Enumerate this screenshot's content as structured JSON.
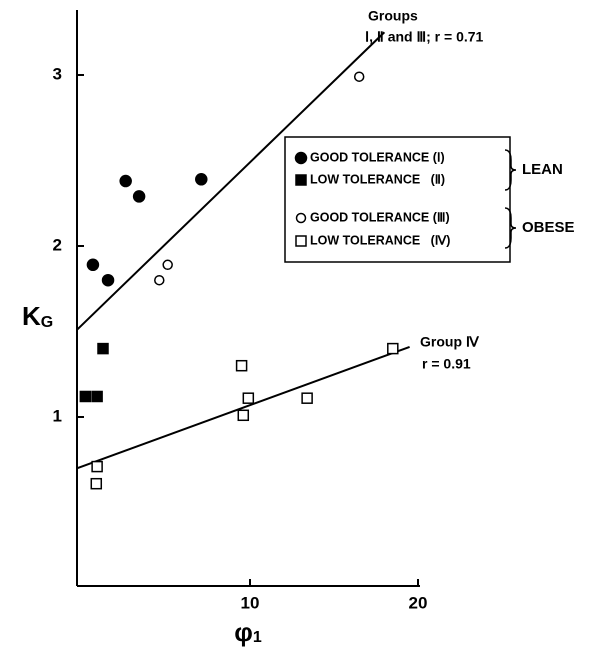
{
  "chart_data": {
    "type": "scatter",
    "xlabel": {
      "text": "φ",
      "sub": "1"
    },
    "ylabel": {
      "text": "K",
      "sub": "G"
    },
    "xlim": [
      0,
      20
    ],
    "ylim": [
      0,
      3.4
    ],
    "xticks": [
      10,
      20
    ],
    "yticks": [
      1,
      2,
      3
    ],
    "series": [
      {
        "name": "GOOD TOLERANCE (Ⅰ)",
        "marker": "circle",
        "filled": true,
        "color": "#000000",
        "x": [
          0.65,
          1.55,
          2.6,
          3.4,
          7.1
        ],
        "values": [
          1.89,
          1.8,
          2.38,
          2.29,
          2.39
        ]
      },
      {
        "name": "LOW TOLERANCE   (Ⅱ)",
        "marker": "square",
        "filled": true,
        "color": "#000000",
        "x": [
          0.2,
          0.9,
          1.25
        ],
        "values": [
          1.12,
          1.12,
          1.4
        ]
      },
      {
        "name": "GOOD TOLERANCE (Ⅲ)",
        "marker": "circle",
        "filled": false,
        "color": "#000000",
        "x": [
          4.6,
          5.1,
          16.5
        ],
        "values": [
          1.8,
          1.89,
          2.99
        ]
      },
      {
        "name": "LOW TOLERANCE   (Ⅳ)",
        "marker": "square",
        "filled": false,
        "color": "#000000",
        "x": [
          0.9,
          0.85,
          9.5,
          9.9,
          9.6,
          13.4,
          18.5
        ],
        "values": [
          0.71,
          0.61,
          1.3,
          1.11,
          1.01,
          1.11,
          1.4
        ]
      }
    ],
    "legend_groups": [
      "LEAN",
      "OBESE"
    ],
    "fit_lines": [
      {
        "label": [
          "Groups",
          "Ⅰ, Ⅱ and Ⅲ; r = 0.71"
        ],
        "x": [
          -0.3,
          18.0
        ],
        "values": [
          1.51,
          3.25
        ]
      },
      {
        "label": [
          "Group Ⅳ",
          "r = 0.91"
        ],
        "x": [
          -0.3,
          19.5
        ],
        "values": [
          0.7,
          1.41
        ]
      }
    ]
  }
}
